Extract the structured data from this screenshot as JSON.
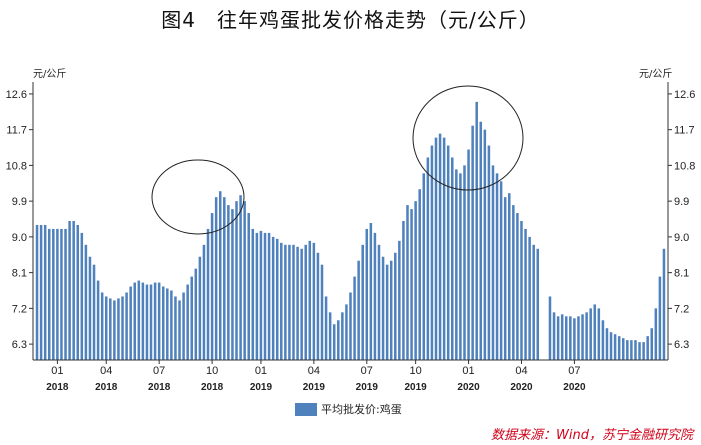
{
  "title": "图4　往年鸡蛋批发价格走势（元/公斤）",
  "source": "数据来源：Wind，苏宁金融研究院",
  "chart_data": {
    "type": "bar",
    "unit_left": "元/公斤",
    "unit_right": "元/公斤",
    "ylim": [
      5.9,
      12.9
    ],
    "yticks": [
      6.3,
      7.2,
      8.1,
      9.0,
      9.9,
      10.8,
      11.7,
      12.6
    ],
    "ytick_labels": [
      "6.3",
      "7.2",
      "8.1",
      "9.0",
      "9.9",
      "10.8",
      "11.7",
      "12.6"
    ],
    "xticks": [
      {
        "week": 5,
        "month": "01",
        "year": "2018"
      },
      {
        "week": 17,
        "month": "04",
        "year": "2018"
      },
      {
        "week": 30,
        "month": "07",
        "year": "2018"
      },
      {
        "week": 43,
        "month": "10",
        "year": "2018"
      },
      {
        "week": 55,
        "month": "01",
        "year": "2019"
      },
      {
        "week": 68,
        "month": "04",
        "year": "2019"
      },
      {
        "week": 81,
        "month": "07",
        "year": "2019"
      },
      {
        "week": 93,
        "month": "10",
        "year": "2019"
      },
      {
        "week": 106,
        "month": "01",
        "year": "2020"
      },
      {
        "week": 119,
        "month": "04",
        "year": "2020"
      },
      {
        "week": 132,
        "month": "07",
        "year": "2020"
      }
    ],
    "series": [
      {
        "name": "平均批发价:鸡蛋",
        "color": "#4f81bd",
        "values": [
          9.3,
          9.3,
          9.3,
          9.2,
          9.2,
          9.2,
          9.2,
          9.2,
          9.4,
          9.4,
          9.3,
          9.1,
          8.8,
          8.5,
          8.3,
          7.9,
          7.6,
          7.5,
          7.45,
          7.4,
          7.45,
          7.5,
          7.6,
          7.75,
          7.85,
          7.9,
          7.85,
          7.8,
          7.8,
          7.85,
          7.85,
          7.75,
          7.7,
          7.65,
          7.5,
          7.4,
          7.6,
          7.8,
          8.0,
          8.2,
          8.5,
          8.8,
          9.2,
          9.6,
          10.0,
          10.15,
          10.0,
          9.8,
          9.7,
          9.9,
          10.05,
          9.9,
          9.6,
          9.2,
          9.1,
          9.15,
          9.1,
          9.1,
          9.0,
          8.95,
          8.85,
          8.8,
          8.8,
          8.8,
          8.75,
          8.7,
          8.8,
          8.9,
          8.85,
          8.6,
          8.3,
          7.5,
          7.1,
          6.8,
          6.9,
          7.1,
          7.3,
          7.6,
          8.0,
          8.4,
          8.8,
          9.2,
          9.35,
          9.1,
          8.8,
          8.5,
          8.3,
          8.4,
          8.6,
          8.9,
          9.4,
          9.8,
          9.7,
          9.9,
          10.2,
          10.6,
          11.0,
          11.3,
          11.5,
          11.6,
          11.5,
          11.3,
          11.0,
          10.7,
          10.6,
          10.8,
          11.2,
          11.8,
          12.4,
          11.9,
          11.7,
          11.3,
          10.8,
          10.6,
          10.4,
          10.0,
          10.1,
          9.8,
          9.6,
          9.4,
          9.2,
          9.0,
          8.8,
          8.7,
          null,
          null,
          7.5,
          7.1,
          7.0,
          7.05,
          7.0,
          7.0,
          6.95,
          7.0,
          7.05,
          7.1,
          7.2,
          7.3,
          7.2,
          6.9,
          6.7,
          6.6,
          6.55,
          6.5,
          6.45,
          6.4,
          6.4,
          6.4,
          6.35,
          6.35,
          6.5,
          6.7,
          7.2,
          8.0,
          8.7
        ]
      }
    ],
    "annotations": [
      {
        "type": "ellipse",
        "description": "2018-08 peak"
      },
      {
        "type": "ellipse",
        "description": "2019-10 peak"
      }
    ]
  }
}
